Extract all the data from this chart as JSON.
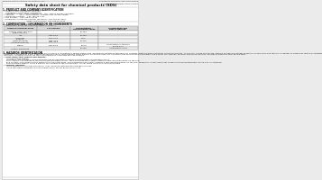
{
  "bg_color": "#ebebeb",
  "page_bg": "#ffffff",
  "header_left": "Product Name: Lithium Ion Battery Cell",
  "header_right_line1": "Substance Number: SBN-049-00018",
  "header_right_line2": "Established / Revision: Dec.7.2010",
  "title": "Safety data sheet for chemical products (SDS)",
  "section1_title": "1. PRODUCT AND COMPANY IDENTIFICATION",
  "section1_lines": [
    "• Product name: Lithium Ion Battery Cell",
    "• Product code: Cylindrical-type cell",
    "   (UR18650A, UR18650S, UR18650A)",
    "• Company name:   Sanyo Electric Co., Ltd., Mobile Energy Company",
    "• Address:        2221  Kamimakiura, Sumoto-City, Hyogo, Japan",
    "• Telephone number:   +81-799-26-4111",
    "• Fax number:  +81-799-26-4120",
    "• Emergency telephone number (daytime): +81-799-26-3842",
    "                                  (Night and holiday): +81-799-26-4120"
  ],
  "section2_title": "2. COMPOSITION / INFORMATION ON INGREDIENTS",
  "section2_intro": "• Substance or preparation: Preparation",
  "section2_sub": "• Information about the chemical nature of product:",
  "table_headers": [
    "Common chemical name",
    "CAS number",
    "Concentration /\nConcentration range",
    "Classification and\nhazard labeling"
  ],
  "table_rows": [
    [
      "Lithium cobalt tantalate\n(LiMnCoO₂/LiO₂)",
      "-",
      "30-60%",
      "-"
    ],
    [
      "Iron",
      "7439-89-6",
      "15-25%",
      "-"
    ],
    [
      "Aluminum",
      "7429-90-5",
      "2-8%",
      "-"
    ],
    [
      "Graphite\n(Meso graphite)\n(Artificial graphite)",
      "7782-42-5\n7782-44-2",
      "10-20%",
      "-"
    ],
    [
      "Copper",
      "7440-50-8",
      "5-15%",
      "Sensitization of the skin\ngroup No.2"
    ],
    [
      "Organic electrolyte",
      "-",
      "10-20%",
      "Inflammable liquid"
    ]
  ],
  "section3_title": "3. HAZARDS IDENTIFICATION",
  "section3_paras": [
    "   For the battery cell, chemical materials are stored in a hermetically sealed metal case, designed to withstand temperature changes, pressure-force variations during normal use. As a result, during normal use, there is no physical danger of ignition or explosion and there is no danger of hazardous materials leakage.",
    "   However, if exposed to a fire, added mechanical shocks, decomposed, when electric circuit mis-case use, the gas inside normal can be operated. The battery cell case will be breached at fire patterns, hazardous materials may be released.",
    "   Moreover, if heated strongly by the surrounding fire, some gas may be emitted."
  ],
  "section3_bullet1": "• Most important hazard and effects:",
  "section3_health": "   Human health effects:",
  "section3_health_items": [
    "      Inhalation: The release of the electrolyte has an anaesthesia action and stimulates a respiratory tract.",
    "      Skin contact: The release of the electrolyte stimulates a skin. The electrolyte skin contact causes a sore and stimulation on the skin.",
    "      Eye contact: The release of the electrolyte stimulates eyes. The electrolyte eye contact causes a sore and stimulation on the eye. Especially, a substance that causes a strong inflammation of the eye is contained.",
    "      Environmental effects: Since a battery cell remains in the environment, do not throw out it into the environment."
  ],
  "section3_bullet2": "• Specific hazards:",
  "section3_specific": [
    "   If the electrolyte contacts with water, it will generate detrimental hydrogen fluoride.",
    "   Since the used electrolyte is inflammable liquid, do not bring close to fire."
  ]
}
